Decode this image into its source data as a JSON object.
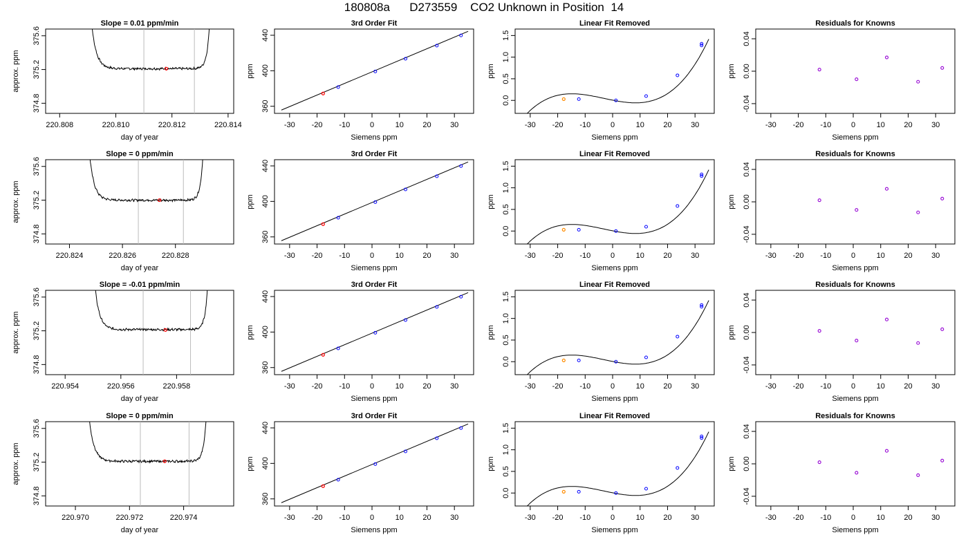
{
  "page": {
    "title": "180808a      D273559    CO2 Unknown in Position  14"
  },
  "chart_data": {
    "type": "multi-panel scatter/line grid",
    "rows": [
      {
        "timeseries": {
          "type": "line",
          "title": "Slope =  0.01  ppm/min",
          "xlabel": "day of year",
          "ylabel": "approx. ppm",
          "xlim": [
            220.8075,
            220.8142
          ],
          "ylim": [
            374.68,
            375.68
          ],
          "xticks": [
            220.808,
            220.81,
            220.812,
            220.814
          ],
          "xtick_labels": [
            "220.808",
            "220.810",
            "220.812",
            "220.814"
          ],
          "yticks": [
            374.8,
            375.2,
            375.6
          ],
          "ytick_labels": [
            "374.8",
            "375.2",
            "375.6"
          ],
          "x_start": 220.809,
          "x_end": 220.81345,
          "plateau": 375.21,
          "noise": 0.012,
          "vlines": [
            220.811,
            220.8128
          ],
          "red_point": [
            220.8118,
            375.21
          ]
        },
        "fit": {
          "type": "scatter",
          "title": "3rd Order Fit",
          "xlabel": "Siemens ppm",
          "ylabel": "ppm",
          "xlim": [
            -35.5,
            37
          ],
          "ylim": [
            352,
            447
          ],
          "xticks": [
            -30,
            -20,
            -10,
            0,
            10,
            20,
            30
          ],
          "yticks": [
            360,
            400,
            440
          ],
          "line": [
            [
              -33,
              355.7
            ],
            [
              35,
              444.4
            ]
          ],
          "knowns": [
            [
              -12.3,
              381.6
            ],
            [
              1.2,
              399.2
            ],
            [
              12.2,
              413.5
            ],
            [
              23.6,
              428.3
            ],
            [
              32.4,
              439.8
            ]
          ],
          "unknown": [
            -17.8,
            374.4
          ]
        },
        "residual_fit": {
          "type": "scatter",
          "title": "Linear Fit Removed",
          "xlabel": "Siemens ppm",
          "ylabel": "ppm",
          "xlim": [
            -35.5,
            37
          ],
          "ylim": [
            -0.3,
            1.65
          ],
          "xticks": [
            -30,
            -20,
            -10,
            0,
            10,
            20,
            30
          ],
          "yticks": [
            0.0,
            0.5,
            1.0,
            1.5
          ],
          "ytick_labels": [
            "0.0",
            "0.5",
            "1.0",
            "1.5"
          ],
          "knowns": [
            [
              -12.3,
              0.03
            ],
            [
              1.2,
              0.0
            ],
            [
              12.2,
              0.1
            ],
            [
              23.6,
              0.58
            ],
            [
              32.4,
              1.27
            ],
            [
              32.4,
              1.31
            ]
          ],
          "unknown": [
            -17.8,
            0.03
          ]
        },
        "knowns_resid": {
          "type": "scatter",
          "title": "Residuals for Knowns",
          "xlabel": "Siemens ppm",
          "ylabel": "ppm",
          "xlim": [
            -35.5,
            37
          ],
          "ylim": [
            -0.052,
            0.052
          ],
          "xticks": [
            -30,
            -20,
            -10,
            0,
            10,
            20,
            30
          ],
          "yticks": [
            -0.04,
            0.0,
            0.04
          ],
          "ytick_labels": [
            "-0.04",
            "0.00",
            "0.04"
          ],
          "points": [
            [
              -12.3,
              0.002
            ],
            [
              1.2,
              -0.01
            ],
            [
              12.2,
              0.017
            ],
            [
              23.6,
              -0.013
            ],
            [
              32.4,
              0.004
            ]
          ]
        }
      },
      {
        "timeseries": {
          "type": "line",
          "title": "Slope =  0  ppm/min",
          "xlabel": "day of year",
          "ylabel": "approx. ppm",
          "xlim": [
            220.8231,
            220.8302
          ],
          "ylim": [
            374.68,
            375.68
          ],
          "xticks": [
            220.824,
            220.826,
            220.828
          ],
          "xtick_labels": [
            "220.824",
            "220.826",
            "220.828"
          ],
          "yticks": [
            374.8,
            375.2,
            375.6
          ],
          "ytick_labels": [
            "374.8",
            "375.2",
            "375.6"
          ],
          "x_start": 220.82462,
          "x_end": 220.82915,
          "plateau": 375.2,
          "noise": 0.012,
          "vlines": [
            220.8266,
            220.8283
          ],
          "red_point": [
            220.8274,
            375.2
          ]
        },
        "fit": {
          "type": "scatter",
          "title": "3rd Order Fit",
          "xlabel": "Siemens ppm",
          "ylabel": "ppm",
          "xlim": [
            -35.5,
            37
          ],
          "ylim": [
            352,
            447
          ],
          "xticks": [
            -30,
            -20,
            -10,
            0,
            10,
            20,
            30
          ],
          "yticks": [
            360,
            400,
            440
          ],
          "line": [
            [
              -33,
              355.7
            ],
            [
              35,
              444.4
            ]
          ],
          "knowns": [
            [
              -12.3,
              381.6
            ],
            [
              1.2,
              399.2
            ],
            [
              12.2,
              413.5
            ],
            [
              23.6,
              428.3
            ],
            [
              32.4,
              439.8
            ]
          ],
          "unknown": [
            -17.8,
            374.4
          ]
        },
        "residual_fit": {
          "type": "scatter",
          "title": "Linear Fit Removed",
          "xlabel": "Siemens ppm",
          "ylabel": "ppm",
          "xlim": [
            -35.5,
            37
          ],
          "ylim": [
            -0.3,
            1.65
          ],
          "xticks": [
            -30,
            -20,
            -10,
            0,
            10,
            20,
            30
          ],
          "yticks": [
            0.0,
            0.5,
            1.0,
            1.5
          ],
          "ytick_labels": [
            "0.0",
            "0.5",
            "1.0",
            "1.5"
          ],
          "knowns": [
            [
              -12.3,
              0.03
            ],
            [
              1.2,
              0.0
            ],
            [
              12.2,
              0.1
            ],
            [
              23.6,
              0.58
            ],
            [
              32.4,
              1.27
            ],
            [
              32.4,
              1.31
            ]
          ],
          "unknown": [
            -17.8,
            0.03
          ]
        },
        "knowns_resid": {
          "type": "scatter",
          "title": "Residuals for Knowns",
          "xlabel": "Siemens ppm",
          "ylabel": "ppm",
          "xlim": [
            -35.5,
            37
          ],
          "ylim": [
            -0.052,
            0.052
          ],
          "xticks": [
            -30,
            -20,
            -10,
            0,
            10,
            20,
            30
          ],
          "yticks": [
            -0.04,
            0.0,
            0.04
          ],
          "ytick_labels": [
            "-0.04",
            "0.00",
            "0.04"
          ],
          "points": [
            [
              -12.3,
              0.002
            ],
            [
              1.2,
              -0.01
            ],
            [
              12.2,
              0.016
            ],
            [
              23.6,
              -0.013
            ],
            [
              32.4,
              0.004
            ]
          ]
        }
      },
      {
        "timeseries": {
          "type": "line",
          "title": "Slope =  -0.01  ppm/min",
          "xlabel": "day of year",
          "ylabel": "approx. ppm",
          "xlim": [
            220.9533,
            220.96005
          ],
          "ylim": [
            374.68,
            375.68
          ],
          "xticks": [
            220.954,
            220.956,
            220.958
          ],
          "xtick_labels": [
            "220.954",
            "220.956",
            "220.958"
          ],
          "yticks": [
            374.8,
            375.2,
            375.6
          ],
          "ytick_labels": [
            "374.8",
            "375.2",
            "375.6"
          ],
          "x_start": 220.95493,
          "x_end": 220.95922,
          "plateau": 375.215,
          "noise": 0.012,
          "vlines": [
            220.9568,
            220.9585
          ],
          "red_point": [
            220.9576,
            375.21
          ]
        },
        "fit": {
          "type": "scatter",
          "title": "3rd Order Fit",
          "xlabel": "Siemens ppm",
          "ylabel": "ppm",
          "xlim": [
            -35.5,
            37
          ],
          "ylim": [
            352,
            447
          ],
          "xticks": [
            -30,
            -20,
            -10,
            0,
            10,
            20,
            30
          ],
          "yticks": [
            360,
            400,
            440
          ],
          "line": [
            [
              -33,
              355.7
            ],
            [
              35,
              444.4
            ]
          ],
          "knowns": [
            [
              -12.3,
              381.6
            ],
            [
              1.2,
              399.2
            ],
            [
              12.2,
              413.5
            ],
            [
              23.6,
              428.3
            ],
            [
              32.4,
              439.8
            ]
          ],
          "unknown": [
            -17.8,
            374.4
          ]
        },
        "residual_fit": {
          "type": "scatter",
          "title": "Linear Fit Removed",
          "xlabel": "Siemens ppm",
          "ylabel": "ppm",
          "xlim": [
            -35.5,
            37
          ],
          "ylim": [
            -0.3,
            1.65
          ],
          "xticks": [
            -30,
            -20,
            -10,
            0,
            10,
            20,
            30
          ],
          "yticks": [
            0.0,
            0.5,
            1.0,
            1.5
          ],
          "ytick_labels": [
            "0.0",
            "0.5",
            "1.0",
            "1.5"
          ],
          "knowns": [
            [
              -12.3,
              0.03
            ],
            [
              1.2,
              0.0
            ],
            [
              12.2,
              0.1
            ],
            [
              23.6,
              0.58
            ],
            [
              32.4,
              1.27
            ],
            [
              32.4,
              1.31
            ]
          ],
          "unknown": [
            -17.8,
            0.03
          ]
        },
        "knowns_resid": {
          "type": "scatter",
          "title": "Residuals for Knowns",
          "xlabel": "Siemens ppm",
          "ylabel": "ppm",
          "xlim": [
            -35.5,
            37
          ],
          "ylim": [
            -0.052,
            0.052
          ],
          "xticks": [
            -30,
            -20,
            -10,
            0,
            10,
            20,
            30
          ],
          "yticks": [
            -0.04,
            0.0,
            0.04
          ],
          "ytick_labels": [
            "-0.04",
            "0.00",
            "0.04"
          ],
          "points": [
            [
              -12.3,
              0.002
            ],
            [
              1.2,
              -0.01
            ],
            [
              12.2,
              0.016
            ],
            [
              23.6,
              -0.013
            ],
            [
              32.4,
              0.004
            ]
          ]
        }
      },
      {
        "timeseries": {
          "type": "line",
          "title": "Slope =  0  ppm/min",
          "xlabel": "day of year",
          "ylabel": "approx. ppm",
          "xlim": [
            220.9689,
            220.97585
          ],
          "ylim": [
            374.68,
            375.68
          ],
          "xticks": [
            220.97,
            220.972,
            220.974
          ],
          "xtick_labels": [
            "220.970",
            "220.972",
            "220.974"
          ],
          "yticks": [
            374.8,
            375.2,
            375.6
          ],
          "ytick_labels": [
            "374.8",
            "375.2",
            "375.6"
          ],
          "x_start": 220.97036,
          "x_end": 220.97495,
          "plateau": 375.21,
          "noise": 0.012,
          "vlines": [
            220.9724,
            220.9742
          ],
          "red_point": [
            220.9733,
            375.21
          ]
        },
        "fit": {
          "type": "scatter",
          "title": "3rd Order Fit",
          "xlabel": "Siemens ppm",
          "ylabel": "ppm",
          "xlim": [
            -35.5,
            37
          ],
          "ylim": [
            352,
            447
          ],
          "xticks": [
            -30,
            -20,
            -10,
            0,
            10,
            20,
            30
          ],
          "yticks": [
            360,
            400,
            440
          ],
          "line": [
            [
              -33,
              355.7
            ],
            [
              35,
              444.4
            ]
          ],
          "knowns": [
            [
              -12.3,
              381.6
            ],
            [
              1.2,
              399.2
            ],
            [
              12.2,
              413.5
            ],
            [
              23.6,
              428.3
            ],
            [
              32.4,
              439.8
            ]
          ],
          "unknown": [
            -17.8,
            374.4
          ]
        },
        "residual_fit": {
          "type": "scatter",
          "title": "Linear Fit Removed",
          "xlabel": "Siemens ppm",
          "ylabel": "ppm",
          "xlim": [
            -35.5,
            37
          ],
          "ylim": [
            -0.3,
            1.65
          ],
          "xticks": [
            -30,
            -20,
            -10,
            0,
            10,
            20,
            30
          ],
          "yticks": [
            0.0,
            0.5,
            1.0,
            1.5
          ],
          "ytick_labels": [
            "0.0",
            "0.5",
            "1.0",
            "1.5"
          ],
          "knowns": [
            [
              -12.3,
              0.03
            ],
            [
              1.2,
              0.0
            ],
            [
              12.2,
              0.1
            ],
            [
              23.6,
              0.58
            ],
            [
              32.4,
              1.27
            ],
            [
              32.4,
              1.31
            ]
          ],
          "unknown": [
            -17.8,
            0.03
          ]
        },
        "knowns_resid": {
          "type": "scatter",
          "title": "Residuals for Knowns",
          "xlabel": "Siemens ppm",
          "ylabel": "ppm",
          "xlim": [
            -35.5,
            37
          ],
          "ylim": [
            -0.052,
            0.052
          ],
          "xticks": [
            -30,
            -20,
            -10,
            0,
            10,
            20,
            30
          ],
          "yticks": [
            -0.04,
            0.0,
            0.04
          ],
          "ytick_labels": [
            "-0.04",
            "0.00",
            "0.04"
          ],
          "points": [
            [
              -12.3,
              0.002
            ],
            [
              1.2,
              -0.011
            ],
            [
              12.2,
              0.016
            ],
            [
              23.6,
              -0.014
            ],
            [
              32.4,
              0.004
            ]
          ]
        }
      }
    ],
    "colors": {
      "line": "#000000",
      "vline": "#bbbbbb",
      "known_marker": "#0000ff",
      "unknown_marker": "#ff0000",
      "unknown_fill_marker": "#ff8c00",
      "resid_marker": "#9400d3"
    }
  }
}
